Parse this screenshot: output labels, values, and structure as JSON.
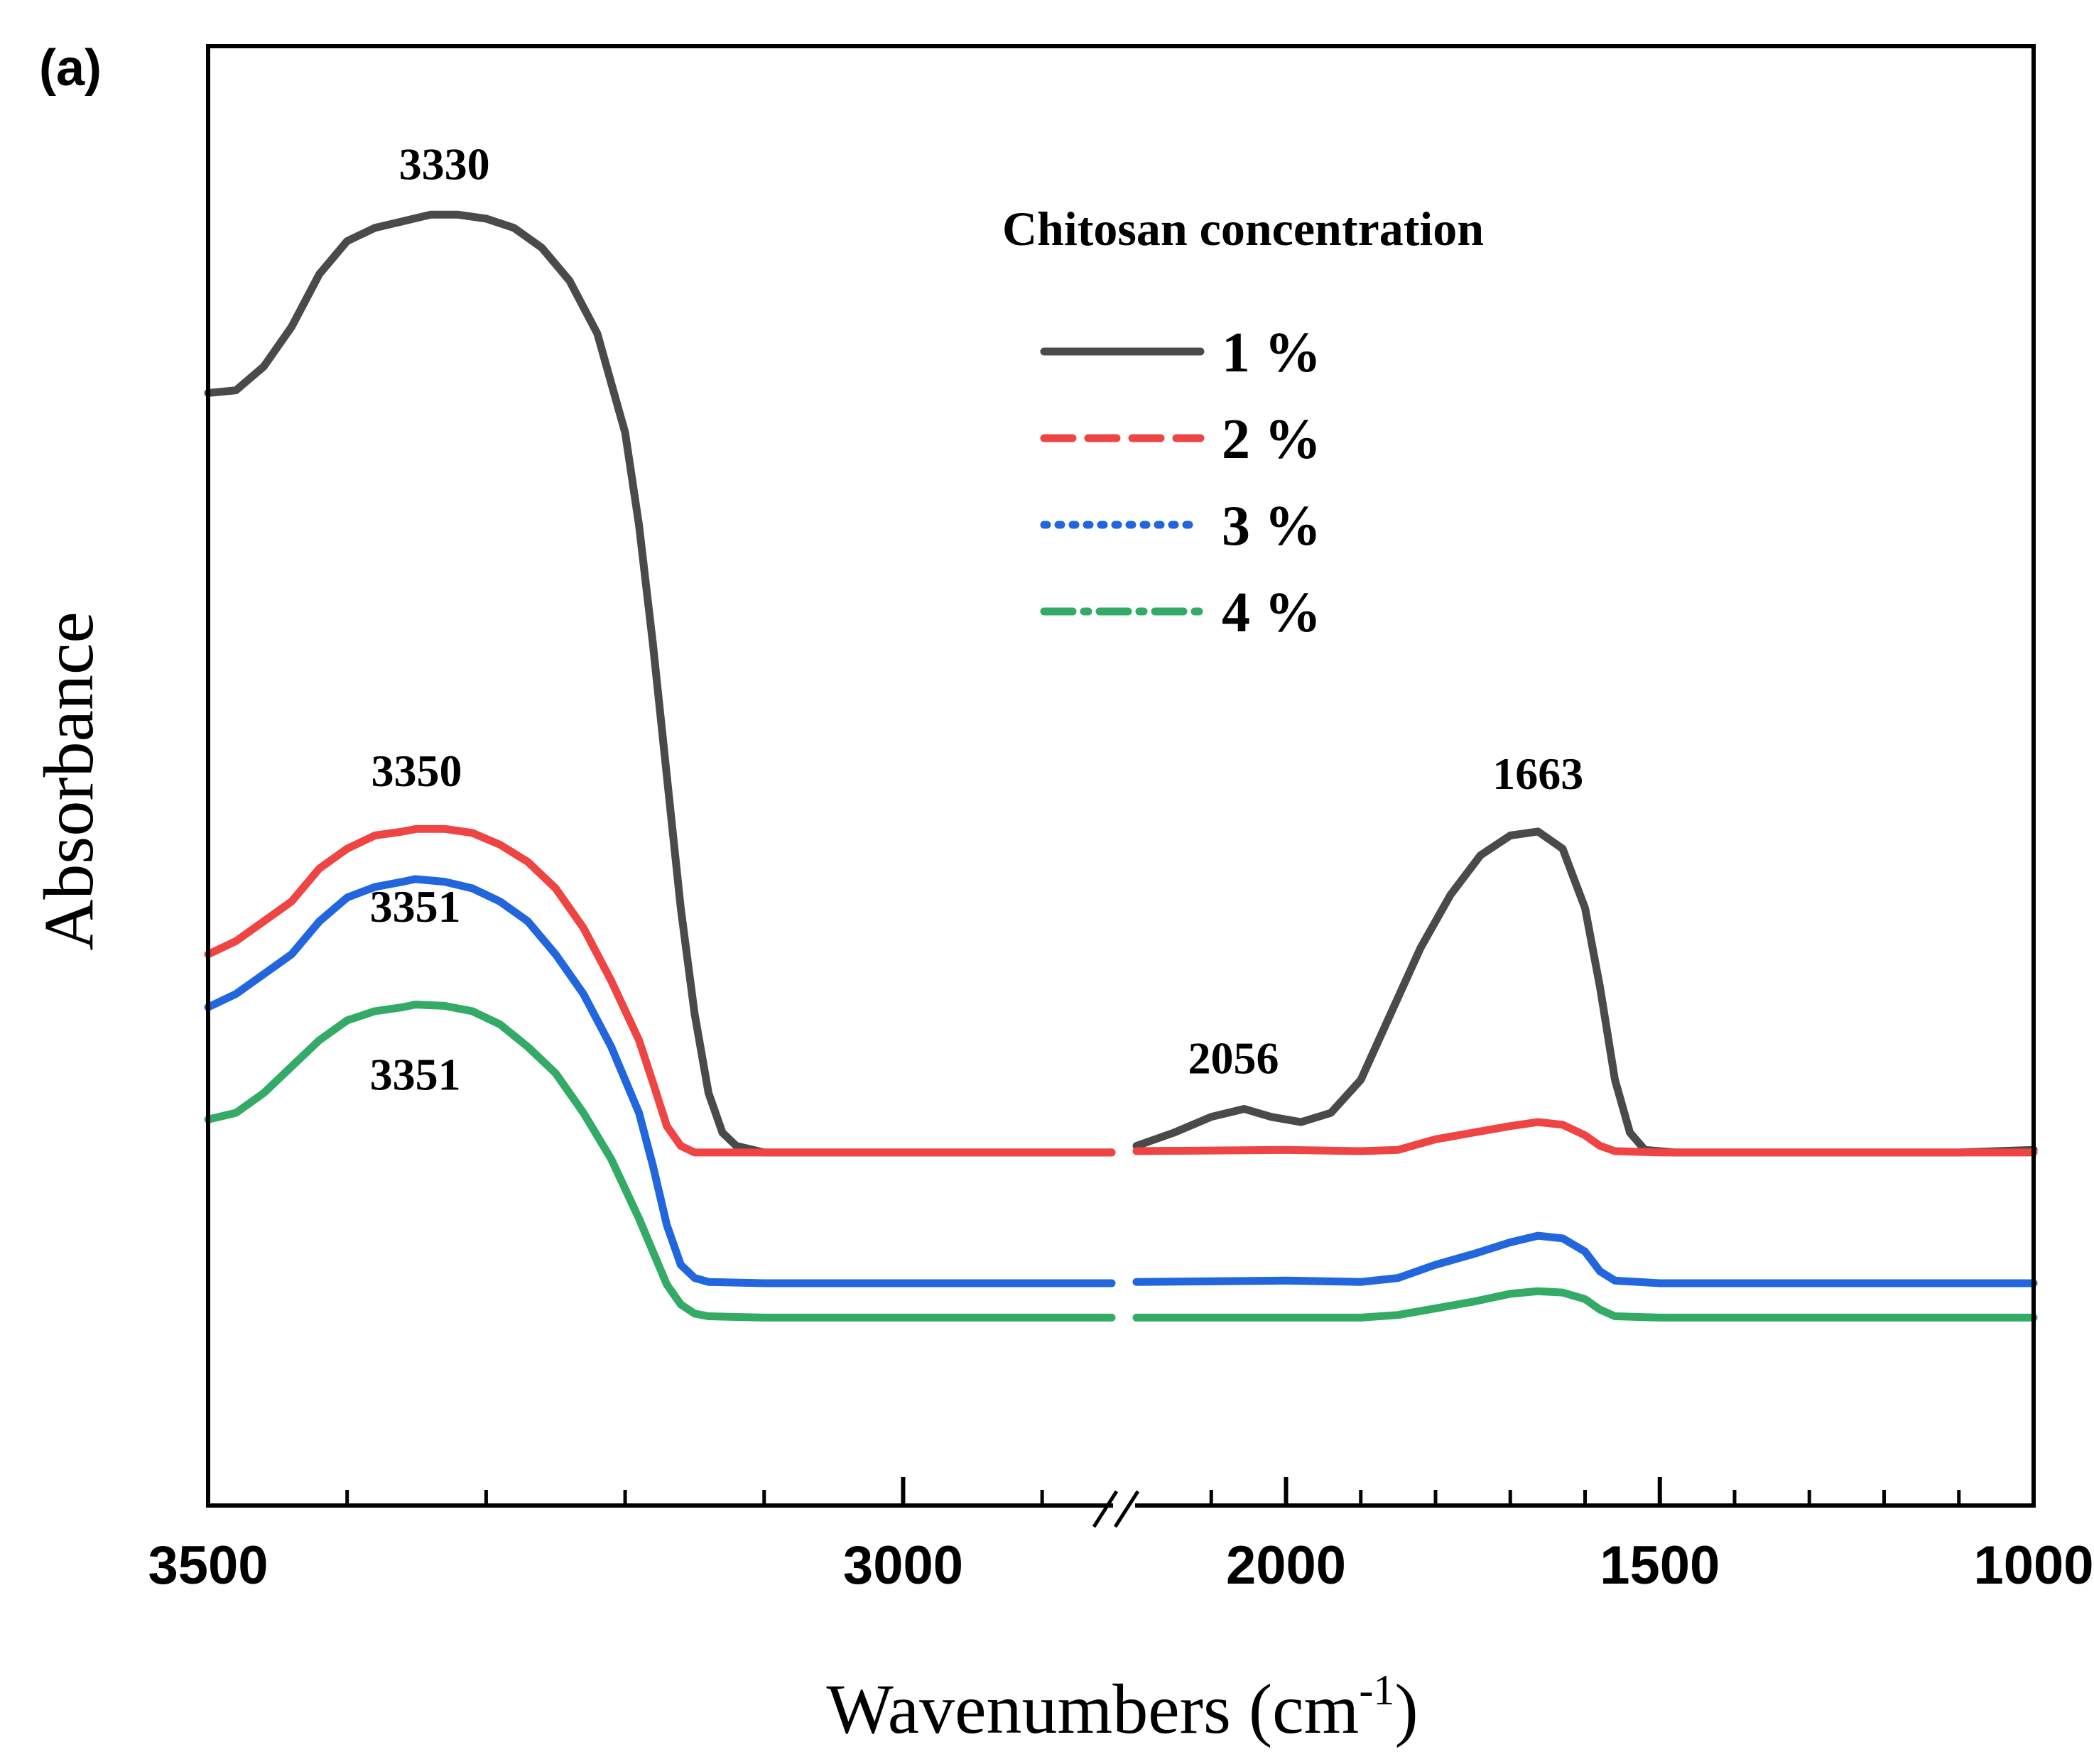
{
  "panel_label": "(a)",
  "colors": {
    "1 %": "#4a4a4a",
    "2 %": "#ee4444",
    "3 %": "#2266dd",
    "4 %": "#33aa66"
  },
  "chart_data": {
    "type": "line",
    "panel_label": "(a)",
    "xlabel": "Wavenumbers (cm",
    "xlabel_sup": "-1",
    "xlabel_close": ")",
    "ylabel": "Absorbance",
    "x_reversed": true,
    "x_axis_break": [
      2200,
      2850
    ],
    "xlim_left": [
      3500,
      2850
    ],
    "xlim_right": [
      2200,
      1000
    ],
    "xticks": [
      3500,
      3000,
      2000,
      1500,
      1000
    ],
    "yticks": "none",
    "ylim": [
      0,
      1
    ],
    "grid": false,
    "legend": {
      "title": "Chitosan concentration",
      "placement": "top-right",
      "entries": [
        "1 %",
        "2 %",
        "3 %",
        "4 %"
      ]
    },
    "series": [
      {
        "name": "1 %",
        "style": "solid",
        "marker": "square",
        "points": [
          [
            3500,
            0.81
          ],
          [
            3480,
            0.812
          ],
          [
            3460,
            0.83
          ],
          [
            3440,
            0.86
          ],
          [
            3420,
            0.9
          ],
          [
            3400,
            0.925
          ],
          [
            3380,
            0.935
          ],
          [
            3360,
            0.94
          ],
          [
            3340,
            0.945
          ],
          [
            3320,
            0.945
          ],
          [
            3300,
            0.942
          ],
          [
            3280,
            0.935
          ],
          [
            3260,
            0.92
          ],
          [
            3240,
            0.895
          ],
          [
            3220,
            0.855
          ],
          [
            3200,
            0.78
          ],
          [
            3190,
            0.71
          ],
          [
            3180,
            0.62
          ],
          [
            3170,
            0.52
          ],
          [
            3160,
            0.42
          ],
          [
            3150,
            0.34
          ],
          [
            3140,
            0.28
          ],
          [
            3130,
            0.25
          ],
          [
            3120,
            0.24
          ],
          [
            3100,
            0.235
          ],
          [
            3050,
            0.235
          ],
          [
            3000,
            0.235
          ],
          [
            2950,
            0.235
          ],
          [
            2900,
            0.235
          ],
          [
            2850,
            0.235
          ],
          [
            2200,
            0.24
          ],
          [
            2150,
            0.25
          ],
          [
            2100,
            0.262
          ],
          [
            2056,
            0.268
          ],
          [
            2020,
            0.262
          ],
          [
            1980,
            0.258
          ],
          [
            1940,
            0.265
          ],
          [
            1900,
            0.29
          ],
          [
            1860,
            0.34
          ],
          [
            1820,
            0.39
          ],
          [
            1780,
            0.43
          ],
          [
            1740,
            0.46
          ],
          [
            1700,
            0.475
          ],
          [
            1663,
            0.478
          ],
          [
            1630,
            0.465
          ],
          [
            1600,
            0.42
          ],
          [
            1580,
            0.36
          ],
          [
            1560,
            0.29
          ],
          [
            1540,
            0.25
          ],
          [
            1520,
            0.237
          ],
          [
            1480,
            0.235
          ],
          [
            1300,
            0.235
          ],
          [
            1100,
            0.235
          ],
          [
            1000,
            0.237
          ]
        ]
      },
      {
        "name": "2 %",
        "style": "dashed",
        "marker": "circle",
        "points": [
          [
            3500,
            0.385
          ],
          [
            3480,
            0.395
          ],
          [
            3460,
            0.41
          ],
          [
            3440,
            0.425
          ],
          [
            3420,
            0.45
          ],
          [
            3400,
            0.465
          ],
          [
            3380,
            0.475
          ],
          [
            3360,
            0.478
          ],
          [
            3350,
            0.48
          ],
          [
            3330,
            0.48
          ],
          [
            3310,
            0.477
          ],
          [
            3290,
            0.468
          ],
          [
            3270,
            0.455
          ],
          [
            3250,
            0.435
          ],
          [
            3230,
            0.405
          ],
          [
            3210,
            0.365
          ],
          [
            3190,
            0.32
          ],
          [
            3180,
            0.288
          ],
          [
            3170,
            0.255
          ],
          [
            3160,
            0.24
          ],
          [
            3150,
            0.235
          ],
          [
            3100,
            0.235
          ],
          [
            3000,
            0.235
          ],
          [
            2900,
            0.235
          ],
          [
            2850,
            0.235
          ],
          [
            2200,
            0.236
          ],
          [
            2000,
            0.237
          ],
          [
            1900,
            0.236
          ],
          [
            1850,
            0.237
          ],
          [
            1800,
            0.245
          ],
          [
            1750,
            0.25
          ],
          [
            1700,
            0.255
          ],
          [
            1663,
            0.258
          ],
          [
            1630,
            0.256
          ],
          [
            1600,
            0.248
          ],
          [
            1580,
            0.24
          ],
          [
            1560,
            0.236
          ],
          [
            1500,
            0.235
          ],
          [
            1300,
            0.235
          ],
          [
            1000,
            0.235
          ]
        ]
      },
      {
        "name": "3 %",
        "style": "dotted",
        "marker": "triangle-up",
        "points": [
          [
            3500,
            0.345
          ],
          [
            3480,
            0.355
          ],
          [
            3460,
            0.37
          ],
          [
            3440,
            0.385
          ],
          [
            3420,
            0.41
          ],
          [
            3400,
            0.428
          ],
          [
            3380,
            0.436
          ],
          [
            3360,
            0.44
          ],
          [
            3351,
            0.442
          ],
          [
            3330,
            0.44
          ],
          [
            3310,
            0.435
          ],
          [
            3290,
            0.425
          ],
          [
            3270,
            0.41
          ],
          [
            3250,
            0.385
          ],
          [
            3230,
            0.355
          ],
          [
            3210,
            0.315
          ],
          [
            3190,
            0.265
          ],
          [
            3180,
            0.225
          ],
          [
            3170,
            0.18
          ],
          [
            3160,
            0.15
          ],
          [
            3150,
            0.14
          ],
          [
            3140,
            0.137
          ],
          [
            3100,
            0.136
          ],
          [
            3000,
            0.136
          ],
          [
            2900,
            0.136
          ],
          [
            2850,
            0.136
          ],
          [
            2200,
            0.137
          ],
          [
            2000,
            0.138
          ],
          [
            1900,
            0.137
          ],
          [
            1850,
            0.14
          ],
          [
            1800,
            0.15
          ],
          [
            1750,
            0.158
          ],
          [
            1700,
            0.167
          ],
          [
            1663,
            0.172
          ],
          [
            1630,
            0.17
          ],
          [
            1600,
            0.16
          ],
          [
            1580,
            0.145
          ],
          [
            1560,
            0.138
          ],
          [
            1500,
            0.136
          ],
          [
            1300,
            0.136
          ],
          [
            1000,
            0.136
          ]
        ]
      },
      {
        "name": "4 %",
        "style": "dash-dot",
        "marker": "triangle-down",
        "points": [
          [
            3500,
            0.26
          ],
          [
            3480,
            0.265
          ],
          [
            3460,
            0.28
          ],
          [
            3440,
            0.3
          ],
          [
            3420,
            0.32
          ],
          [
            3400,
            0.335
          ],
          [
            3380,
            0.342
          ],
          [
            3360,
            0.345
          ],
          [
            3351,
            0.347
          ],
          [
            3330,
            0.346
          ],
          [
            3310,
            0.342
          ],
          [
            3290,
            0.332
          ],
          [
            3270,
            0.315
          ],
          [
            3250,
            0.295
          ],
          [
            3230,
            0.265
          ],
          [
            3210,
            0.23
          ],
          [
            3190,
            0.185
          ],
          [
            3180,
            0.16
          ],
          [
            3170,
            0.135
          ],
          [
            3160,
            0.12
          ],
          [
            3150,
            0.113
          ],
          [
            3140,
            0.111
          ],
          [
            3100,
            0.11
          ],
          [
            3000,
            0.11
          ],
          [
            2900,
            0.11
          ],
          [
            2850,
            0.11
          ],
          [
            2200,
            0.11
          ],
          [
            2000,
            0.11
          ],
          [
            1900,
            0.11
          ],
          [
            1850,
            0.112
          ],
          [
            1800,
            0.117
          ],
          [
            1750,
            0.122
          ],
          [
            1700,
            0.128
          ],
          [
            1663,
            0.13
          ],
          [
            1630,
            0.129
          ],
          [
            1600,
            0.124
          ],
          [
            1580,
            0.116
          ],
          [
            1560,
            0.111
          ],
          [
            1500,
            0.11
          ],
          [
            1300,
            0.11
          ],
          [
            1000,
            0.11
          ]
        ]
      }
    ],
    "annotations": [
      {
        "text": "3330",
        "x": 3330,
        "y": 0.945,
        "series": "1 %"
      },
      {
        "text": "3350",
        "x": 3350,
        "y": 0.48,
        "series": "2 %"
      },
      {
        "text": "3351",
        "x": 3351,
        "y": 0.442,
        "series": "3 %"
      },
      {
        "text": "3351",
        "x": 3351,
        "y": 0.347,
        "series": "4 %"
      },
      {
        "text": "2056",
        "x": 2056,
        "y": 0.268,
        "series": "1 %"
      },
      {
        "text": "1663",
        "x": 1663,
        "y": 0.478,
        "series": "1 %"
      }
    ]
  }
}
